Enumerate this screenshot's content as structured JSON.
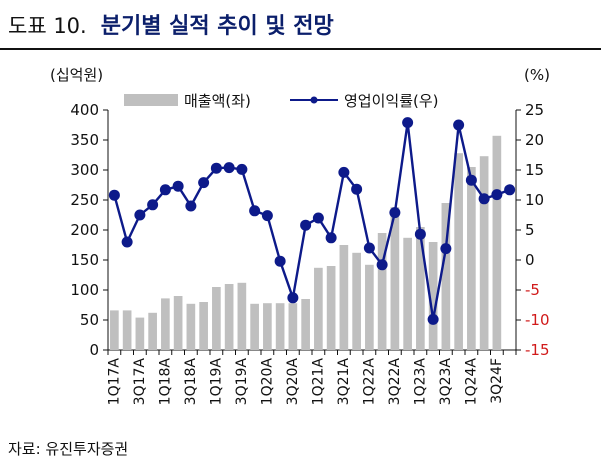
{
  "header": {
    "figure_number": "도표 10.",
    "title": "분기별 실적 추이 및 전망"
  },
  "source": "자료: 유진투자증권",
  "colors": {
    "bar": "#bfbfbf",
    "line": "#0d1a8a",
    "negative_tick": "#d11a1a",
    "title": "#0b1f6b"
  },
  "chart_data": {
    "type": "bar+line",
    "categories": [
      "1Q17A",
      "2Q17A",
      "3Q17A",
      "4Q17A",
      "1Q18A",
      "2Q18A",
      "3Q18A",
      "4Q18A",
      "1Q19A",
      "2Q19A",
      "3Q19A",
      "4Q19A",
      "1Q20A",
      "2Q20A",
      "3Q20A",
      "4Q20A",
      "1Q21A",
      "2Q21A",
      "3Q21A",
      "4Q21A",
      "1Q22A",
      "2Q22A",
      "3Q22A",
      "4Q22A",
      "1Q23A",
      "2Q23A",
      "3Q23A",
      "4Q23A",
      "1Q24A",
      "2Q24F",
      "3Q24F",
      "4Q24F"
    ],
    "x_tick_labels": [
      "1Q17A",
      "3Q17A",
      "1Q18A",
      "3Q18A",
      "1Q19A",
      "3Q19A",
      "1Q20A",
      "3Q20A",
      "1Q21A",
      "3Q21A",
      "1Q22A",
      "3Q22A",
      "1Q23A",
      "3Q23A",
      "1Q24A",
      "3Q24F"
    ],
    "series": [
      {
        "name": "매출액(좌)",
        "type": "bar",
        "axis": "left",
        "values": [
          66,
          66,
          54,
          62,
          86,
          90,
          77,
          80,
          105,
          110,
          112,
          77,
          78,
          78,
          78,
          85,
          137,
          140,
          175,
          162,
          142,
          195,
          238,
          187,
          205,
          180,
          245,
          328,
          305,
          323,
          357,
          0
        ]
      },
      {
        "name": "영업이익률(우)",
        "type": "line",
        "axis": "right",
        "values": [
          10.8,
          3.0,
          7.5,
          9.2,
          11.7,
          12.3,
          9.0,
          12.9,
          15.3,
          15.4,
          15.1,
          8.2,
          7.4,
          -0.2,
          -6.3,
          5.8,
          7.0,
          3.7,
          14.6,
          11.8,
          2.0,
          -0.8,
          7.9,
          22.9,
          4.3,
          -9.9,
          1.9,
          22.5,
          13.3,
          10.2,
          10.9,
          11.7
        ]
      }
    ],
    "y_left": {
      "label": "(십억원)",
      "lim": [
        0,
        400
      ],
      "ticks": [
        "0",
        "50",
        "100",
        "150",
        "200",
        "250",
        "300",
        "350",
        "400"
      ]
    },
    "y_right": {
      "label": "(%)",
      "lim": [
        -15,
        25
      ],
      "ticks": [
        "-15",
        "-10",
        "-5",
        "0",
        "5",
        "10",
        "15",
        "20",
        "25"
      ]
    },
    "legend_position": "top-center",
    "grid": false
  }
}
